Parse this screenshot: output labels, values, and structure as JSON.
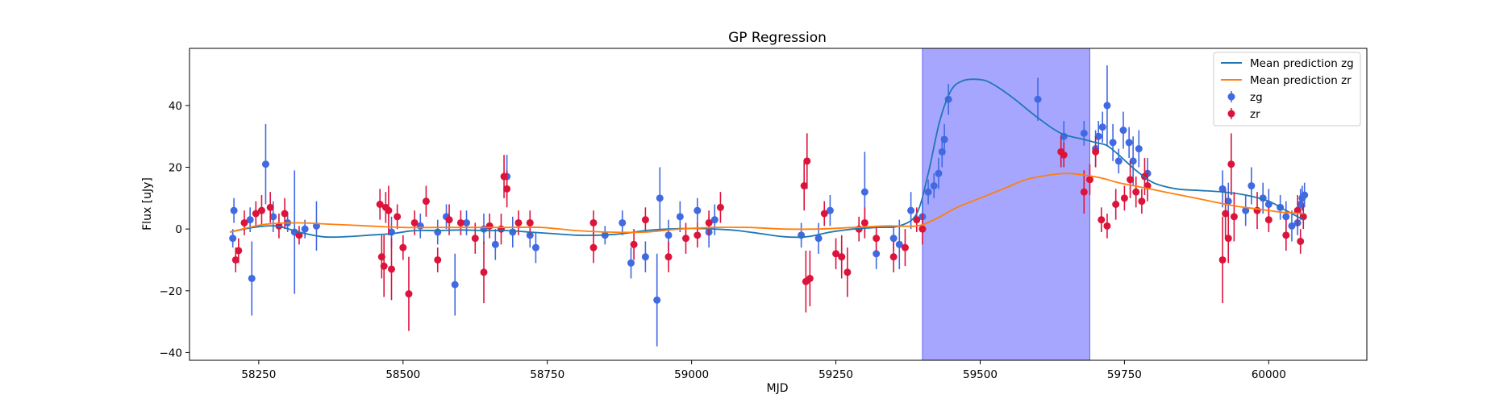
{
  "chart_data": {
    "type": "scatter",
    "title": "GP Regression",
    "xlabel": "MJD",
    "ylabel": "Flux [uJy]",
    "xlim": [
      58130,
      60170
    ],
    "ylim": [
      -42.5,
      58.5
    ],
    "xticks": [
      58250,
      58500,
      58750,
      59000,
      59250,
      59500,
      59750,
      60000
    ],
    "yticks": [
      -40,
      -20,
      0,
      20,
      40
    ],
    "grid": false,
    "legend_position": "upper right",
    "shaded_region": {
      "x_start": 59400,
      "x_end": 59690,
      "color": "#a6a6ff"
    },
    "legend": [
      "Mean prediction zg",
      "Mean prediction zr",
      "zg",
      "zr"
    ],
    "series": [
      {
        "name": "Mean prediction zg",
        "kind": "line",
        "color": "#1f77b4",
        "x": [
          58200,
          58240,
          58280,
          58320,
          58360,
          58400,
          58440,
          58480,
          58520,
          58560,
          58600,
          58640,
          58680,
          58720,
          58760,
          58800,
          58840,
          58880,
          58920,
          58960,
          59000,
          59040,
          59080,
          59120,
          59160,
          59200,
          59240,
          59280,
          59320,
          59360,
          59390,
          59410,
          59430,
          59450,
          59470,
          59490,
          59510,
          59530,
          59560,
          59600,
          59640,
          59680,
          59700,
          59720,
          59740,
          59770,
          59800,
          59840,
          59880,
          59920,
          59960,
          60000,
          60030,
          60060
        ],
        "y": [
          -1,
          0.5,
          1,
          -1,
          -2.5,
          -2.5,
          -2,
          -1.5,
          -0.5,
          -0.5,
          -0.3,
          -0.5,
          -0.5,
          -1,
          -1.5,
          -2,
          -2,
          -1.5,
          -0.5,
          0,
          0.2,
          0,
          -0.5,
          -1.5,
          -2.5,
          -2.5,
          -1,
          0,
          0.5,
          1,
          5,
          18,
          35,
          45,
          48,
          48.5,
          48,
          46,
          42,
          36,
          31,
          29,
          28,
          27,
          24,
          19,
          15,
          13,
          12.5,
          12,
          11,
          9,
          6,
          3
        ]
      },
      {
        "name": "Mean prediction zr",
        "kind": "line",
        "color": "#ff7f0e",
        "x": [
          58200,
          58260,
          58320,
          58380,
          58440,
          58500,
          58560,
          58620,
          58680,
          58740,
          58800,
          58860,
          58920,
          58980,
          59040,
          59100,
          59160,
          59220,
          59280,
          59340,
          59390,
          59420,
          59460,
          59500,
          59540,
          59580,
          59620,
          59650,
          59680,
          59710,
          59740,
          59780,
          59820,
          59860,
          59900,
          59940,
          59980,
          60020,
          60060
        ],
        "y": [
          -1,
          1.5,
          2,
          1.5,
          1,
          0.5,
          0.5,
          0.5,
          0.5,
          0.5,
          -0.5,
          -1,
          -1,
          0,
          0.5,
          0.5,
          0,
          0,
          0.5,
          1,
          1,
          3,
          7,
          10,
          13,
          16,
          17.5,
          18,
          17.5,
          16.5,
          15,
          13.5,
          12,
          10.5,
          9,
          7.5,
          6.5,
          5.5,
          5
        ]
      },
      {
        "name": "zg",
        "kind": "errorbar",
        "color": "#4169e1",
        "points": [
          [
            58205,
            -3,
            3
          ],
          [
            58207,
            6,
            4
          ],
          [
            58235,
            3,
            4
          ],
          [
            58238,
            -16,
            12
          ],
          [
            58262,
            21,
            13
          ],
          [
            58275,
            4,
            5
          ],
          [
            58300,
            2,
            3
          ],
          [
            58312,
            -1,
            20
          ],
          [
            58330,
            0,
            3
          ],
          [
            58350,
            1,
            8
          ],
          [
            58480,
            -1,
            5
          ],
          [
            58530,
            1,
            4
          ],
          [
            58560,
            -1,
            4
          ],
          [
            58575,
            4,
            4
          ],
          [
            58590,
            -18,
            10
          ],
          [
            58610,
            2,
            4
          ],
          [
            58640,
            0,
            5
          ],
          [
            58660,
            -5,
            5
          ],
          [
            58680,
            17,
            7
          ],
          [
            58690,
            -1,
            5
          ],
          [
            58720,
            -2,
            4
          ],
          [
            58730,
            -6,
            5
          ],
          [
            58850,
            -2,
            3
          ],
          [
            58880,
            2,
            4
          ],
          [
            58895,
            -11,
            5
          ],
          [
            58920,
            -9,
            5
          ],
          [
            58940,
            -23,
            15
          ],
          [
            58945,
            10,
            10
          ],
          [
            58960,
            -2,
            5
          ],
          [
            58980,
            4,
            5
          ],
          [
            59010,
            6,
            4
          ],
          [
            59030,
            -1,
            5
          ],
          [
            59040,
            3,
            5
          ],
          [
            59190,
            -2,
            4
          ],
          [
            59220,
            -3,
            5
          ],
          [
            59240,
            6,
            5
          ],
          [
            59260,
            -9,
            5
          ],
          [
            59300,
            12,
            13
          ],
          [
            59320,
            -8,
            5
          ],
          [
            59350,
            -3,
            4
          ],
          [
            59360,
            -5,
            8
          ],
          [
            59380,
            6,
            6
          ],
          [
            59400,
            4,
            5
          ],
          [
            59410,
            12,
            4
          ],
          [
            59420,
            14,
            4
          ],
          [
            59428,
            18,
            5
          ],
          [
            59434,
            25,
            5
          ],
          [
            59438,
            29,
            5
          ],
          [
            59445,
            42,
            5
          ],
          [
            59600,
            42,
            7
          ],
          [
            59645,
            30,
            5
          ],
          [
            59680,
            31,
            4
          ],
          [
            59700,
            26,
            6
          ],
          [
            59705,
            30,
            5
          ],
          [
            59712,
            33,
            5
          ],
          [
            59720,
            40,
            13
          ],
          [
            59730,
            28,
            6
          ],
          [
            59740,
            22,
            4
          ],
          [
            59748,
            32,
            6
          ],
          [
            59758,
            28,
            5
          ],
          [
            59765,
            22,
            8
          ],
          [
            59775,
            26,
            6
          ],
          [
            59790,
            18,
            5
          ],
          [
            59920,
            13,
            6
          ],
          [
            59930,
            9,
            6
          ],
          [
            59960,
            6,
            5
          ],
          [
            59970,
            14,
            6
          ],
          [
            59990,
            10,
            5
          ],
          [
            60000,
            8,
            5
          ],
          [
            60020,
            7,
            4
          ],
          [
            60030,
            4,
            5
          ],
          [
            60040,
            1,
            5
          ],
          [
            60050,
            2,
            4
          ],
          [
            60055,
            8,
            5
          ],
          [
            60058,
            10,
            4
          ],
          [
            60062,
            11,
            4
          ]
        ]
      },
      {
        "name": "zr",
        "kind": "errorbar",
        "color": "#dc143c",
        "points": [
          [
            58210,
            -10,
            4
          ],
          [
            58215,
            -7,
            4
          ],
          [
            58225,
            2,
            4
          ],
          [
            58245,
            5,
            4
          ],
          [
            58255,
            6,
            5
          ],
          [
            58270,
            7,
            5
          ],
          [
            58285,
            1,
            4
          ],
          [
            58295,
            5,
            5
          ],
          [
            58320,
            -2,
            3
          ],
          [
            58460,
            8,
            5
          ],
          [
            58463,
            -9,
            7
          ],
          [
            58467,
            -12,
            10
          ],
          [
            58470,
            7,
            5
          ],
          [
            58475,
            6,
            8
          ],
          [
            58480,
            -13,
            10
          ],
          [
            58490,
            4,
            4
          ],
          [
            58500,
            -6,
            4
          ],
          [
            58510,
            -21,
            12
          ],
          [
            58520,
            2,
            4
          ],
          [
            58540,
            9,
            5
          ],
          [
            58560,
            -10,
            4
          ],
          [
            58580,
            3,
            5
          ],
          [
            58600,
            2,
            4
          ],
          [
            58625,
            -3,
            5
          ],
          [
            58640,
            -14,
            10
          ],
          [
            58650,
            1,
            4
          ],
          [
            58670,
            0,
            5
          ],
          [
            58675,
            17,
            7
          ],
          [
            58680,
            13,
            6
          ],
          [
            58700,
            2,
            4
          ],
          [
            58720,
            2,
            4
          ],
          [
            58830,
            -6,
            5
          ],
          [
            58830,
            2,
            4
          ],
          [
            58900,
            -5,
            5
          ],
          [
            58920,
            3,
            4
          ],
          [
            58960,
            -9,
            5
          ],
          [
            58990,
            -3,
            5
          ],
          [
            59010,
            -2,
            4
          ],
          [
            59030,
            2,
            4
          ],
          [
            59050,
            7,
            5
          ],
          [
            59195,
            14,
            8
          ],
          [
            59198,
            -17,
            10
          ],
          [
            59200,
            22,
            9
          ],
          [
            59205,
            -16,
            9
          ],
          [
            59230,
            5,
            4
          ],
          [
            59250,
            -8,
            5
          ],
          [
            59260,
            -9,
            7
          ],
          [
            59270,
            -14,
            8
          ],
          [
            59290,
            0,
            4
          ],
          [
            59300,
            2,
            5
          ],
          [
            59320,
            -3,
            4
          ],
          [
            59350,
            -9,
            5
          ],
          [
            59370,
            -6,
            6
          ],
          [
            59390,
            3,
            4
          ],
          [
            59400,
            0,
            5
          ],
          [
            59640,
            25,
            5
          ],
          [
            59645,
            24,
            4
          ],
          [
            59680,
            12,
            7
          ],
          [
            59690,
            16,
            5
          ],
          [
            59700,
            25,
            5
          ],
          [
            59710,
            3,
            4
          ],
          [
            59720,
            1,
            4
          ],
          [
            59735,
            8,
            5
          ],
          [
            59750,
            10,
            4
          ],
          [
            59760,
            16,
            6
          ],
          [
            59770,
            12,
            5
          ],
          [
            59780,
            9,
            4
          ],
          [
            59785,
            17,
            6
          ],
          [
            59790,
            14,
            5
          ],
          [
            59920,
            -10,
            14
          ],
          [
            59925,
            5,
            8
          ],
          [
            59930,
            -3,
            8
          ],
          [
            59935,
            21,
            10
          ],
          [
            59940,
            4,
            8
          ],
          [
            59980,
            6,
            6
          ],
          [
            60000,
            3,
            4
          ],
          [
            60030,
            -2,
            5
          ],
          [
            60050,
            6,
            5
          ],
          [
            60055,
            -4,
            4
          ],
          [
            60060,
            4,
            4
          ]
        ]
      }
    ]
  }
}
